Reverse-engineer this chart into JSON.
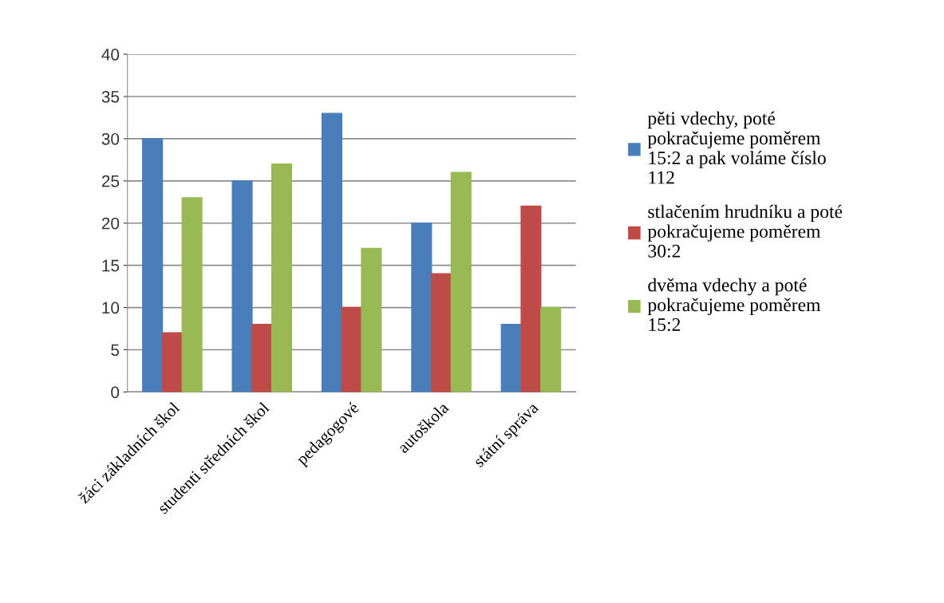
{
  "chart_data": {
    "type": "bar",
    "categories": [
      "žáci základních škol",
      "studenti středních škol",
      "pedagogové",
      "autoškola",
      "státní správa"
    ],
    "series": [
      {
        "name": "pěti vdechy, poté\npokračujeme poměrem\n15:2 a pak voláme číslo\n112",
        "color": "#4a7ebb",
        "values": [
          30,
          25,
          33,
          20,
          8
        ]
      },
      {
        "name": "stlačením hrudníku a poté\npokračujeme poměrem\n30:2",
        "color": "#be4b48",
        "values": [
          7,
          8,
          10,
          14,
          22
        ]
      },
      {
        "name": "dvěma vdechy a poté\npokračujeme poměrem\n15:2",
        "color": "#98b954",
        "values": [
          23,
          27,
          17,
          26,
          10
        ]
      }
    ],
    "ylim": [
      0,
      40
    ],
    "yticks": [
      0,
      5,
      10,
      15,
      20,
      25,
      30,
      35,
      40
    ],
    "grid": "y",
    "legend": "right"
  }
}
